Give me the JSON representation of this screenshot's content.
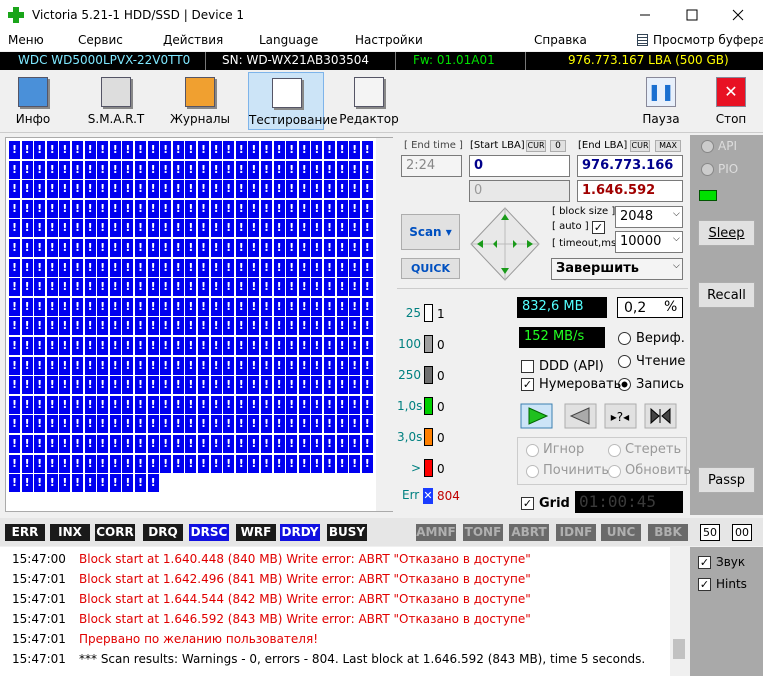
{
  "window": {
    "title": "Victoria 5.21-1 HDD/SSD | Device 1"
  },
  "menu": [
    "Меню",
    "Сервис",
    "Действия",
    "Language",
    "Настройки",
    "Справка"
  ],
  "buffer_view": "Просмотр буфера",
  "drive": {
    "model": "WDC WD5000LPVX-22V0TT0",
    "serial": "SN: WD-WX21AB303504",
    "firmware": "Fw: 01.01A01",
    "capacity": "976.773.167 LBA (500 GB)"
  },
  "toolbar": [
    "Инфо",
    "S.M.A.R.T",
    "Журналы",
    "Тестирование",
    "Редактор"
  ],
  "toolbar_right": [
    "Пауза",
    "Стоп"
  ],
  "surface": {
    "cell_mark": "!"
  },
  "range": {
    "end_time_label": "[ End time ]",
    "end_time": "2:24",
    "start_lba_label": "[Start LBA]",
    "cur": "CUR",
    "start_offset": 0,
    "end_lba_label": "[End LBA]",
    "max": "MAX",
    "start_lba": 0,
    "end_lba": "976.773.166",
    "position": 0,
    "current_lba": "1.646.592"
  },
  "scan": {
    "scan": "Scan",
    "quick": "QUICK",
    "block_size_label": "[ block size ]",
    "auto_label": "[ auto ]",
    "timeout_label": "[ timeout,ms ]",
    "block_size": 2048,
    "timeout": 10000,
    "finish": "Завершить"
  },
  "side": {
    "api": "API",
    "pio": "PIO",
    "sleep": "Sleep",
    "recall": "Recall",
    "passp": "Passp",
    "sound": "Звук",
    "hints": "Hints"
  },
  "stats": [
    {
      "label": "25",
      "count": 1,
      "color": "#ffffff"
    },
    {
      "label": "100",
      "count": 0,
      "color": "#a0a0a0"
    },
    {
      "label": "250",
      "count": 0,
      "color": "#707070"
    },
    {
      "label": "1,0s",
      "count": 0,
      "color": "#00d000"
    },
    {
      "label": "3,0s",
      "count": 0,
      "color": "#ff8000"
    },
    {
      "label": ">",
      "count": 0,
      "color": "#ff0000"
    }
  ],
  "err": {
    "label": "Err",
    "count": 804
  },
  "speed": {
    "done": "832,6 MB",
    "percent": "0,2",
    "percent_sign": "%",
    "rate": "152 MB/s"
  },
  "mode": {
    "verify": "Вериф.",
    "read": "Чтение",
    "write": "Запись",
    "ddd": "DDD (API)",
    "number": "Нумеровать"
  },
  "action": {
    "ignore": "Игнор",
    "erase": "Стереть",
    "repair": "Починить",
    "refresh": "Обновить"
  },
  "grid": {
    "label": "Grid",
    "timer": "01:00:45"
  },
  "flags": [
    {
      "label": "ERR",
      "color": "#1a1a1a"
    },
    {
      "label": "INX",
      "color": "#1a1a1a"
    },
    {
      "label": "CORR",
      "color": "#1a1a1a"
    },
    {
      "label": "DRQ",
      "color": "#1a1a1a"
    },
    {
      "label": "DRSC",
      "color": "#1010e0"
    },
    {
      "label": "WRF",
      "color": "#1a1a1a"
    },
    {
      "label": "DRDY",
      "color": "#1010e0"
    },
    {
      "label": "BUSY",
      "color": "#1a1a1a"
    },
    {
      "label": "AMNF",
      "color": "#6a6a6a"
    },
    {
      "label": "TONF",
      "color": "#6a6a6a"
    },
    {
      "label": "ABRT",
      "color": "#6a6a6a"
    },
    {
      "label": "IDNF",
      "color": "#6a6a6a"
    },
    {
      "label": "UNC",
      "color": "#6a6a6a"
    },
    {
      "label": "BBK",
      "color": "#6a6a6a"
    }
  ],
  "counters": [
    "50",
    "00"
  ],
  "log": [
    {
      "time": "15:47:00",
      "text": "Block start at 1.640.448 (840 MB) Write error: ABRT \"Отказано в доступе\"",
      "color": "#e00000"
    },
    {
      "time": "15:47:01",
      "text": "Block start at 1.642.496 (841 MB) Write error: ABRT \"Отказано в доступе\"",
      "color": "#e00000"
    },
    {
      "time": "15:47:01",
      "text": "Block start at 1.644.544 (842 MB) Write error: ABRT \"Отказано в доступе\"",
      "color": "#e00000"
    },
    {
      "time": "15:47:01",
      "text": "Block start at 1.646.592 (843 MB) Write error: ABRT \"Отказано в доступе\"",
      "color": "#e00000"
    },
    {
      "time": "15:47:01",
      "text": "Прервано по желанию пользователя!",
      "color": "#e00000"
    },
    {
      "time": "15:47:01",
      "text": "*** Scan results: Warnings - 0, errors - 804. Last block at 1.646.592 (843 MB), time 5 seconds.",
      "color": "#000000"
    }
  ]
}
